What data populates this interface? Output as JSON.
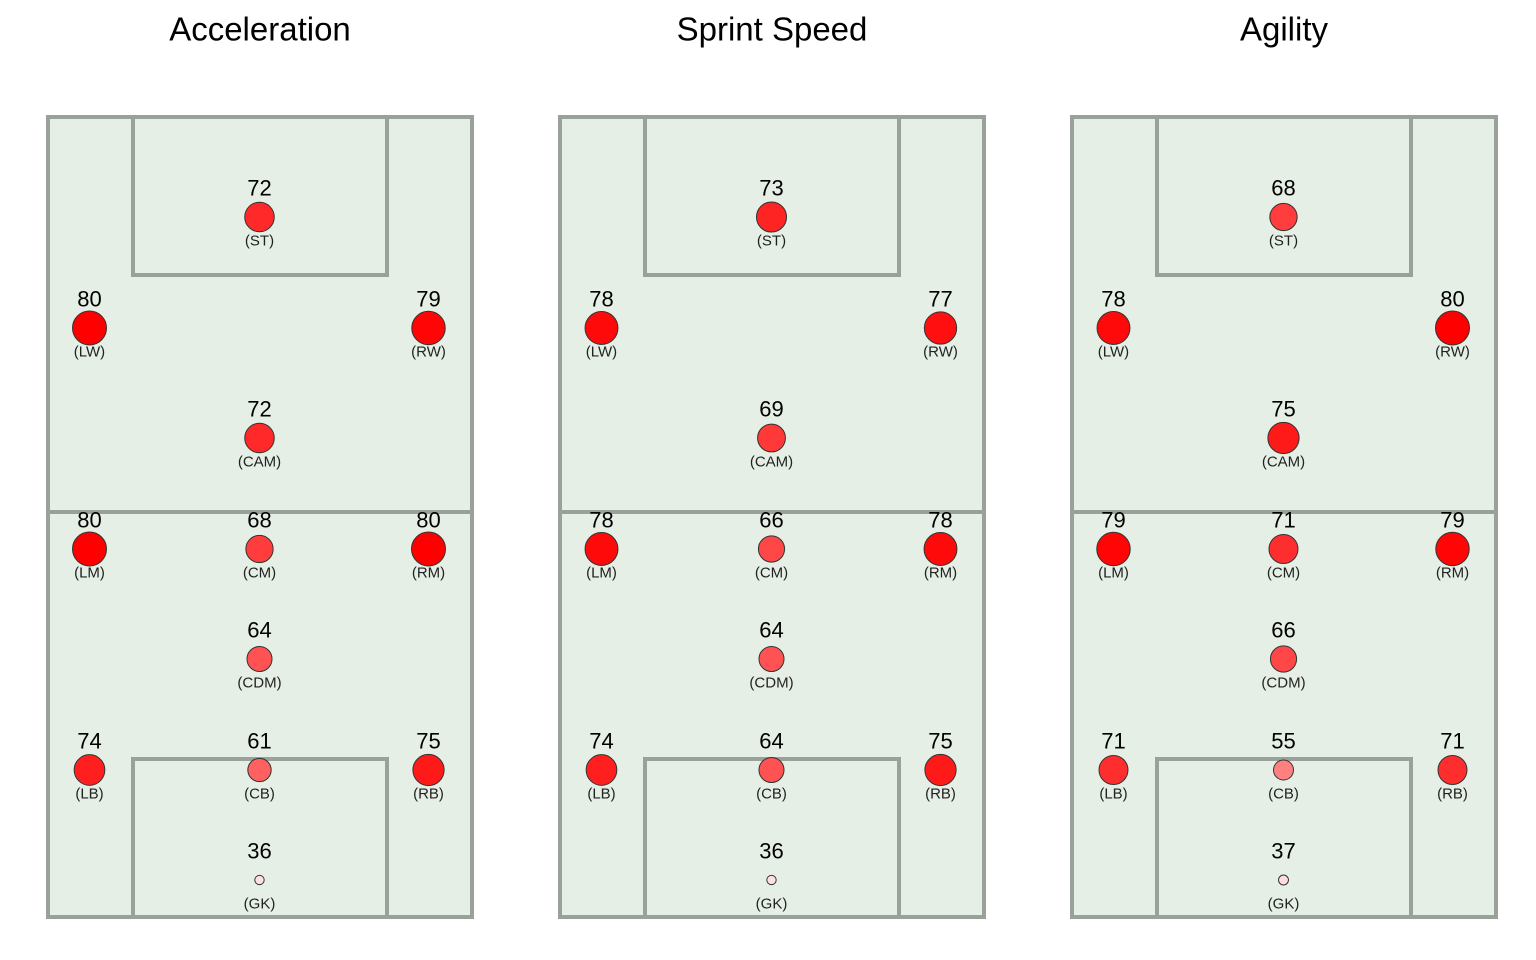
{
  "chart_data": {
    "type": "scatter",
    "color_scale": {
      "low": "#ffffff",
      "high": "#ff0000",
      "domain": [
        30,
        80
      ]
    },
    "positions": [
      {
        "pos": "ST",
        "label": "(ST)",
        "col": 1,
        "row": 0
      },
      {
        "pos": "LW",
        "label": "(LW)",
        "col": 0,
        "row": 1
      },
      {
        "pos": "RW",
        "label": "(RW)",
        "col": 2,
        "row": 1
      },
      {
        "pos": "CAM",
        "label": "(CAM)",
        "col": 1,
        "row": 2
      },
      {
        "pos": "LM",
        "label": "(LM)",
        "col": 0,
        "row": 3
      },
      {
        "pos": "CM",
        "label": "(CM)",
        "col": 1,
        "row": 3
      },
      {
        "pos": "RM",
        "label": "(RM)",
        "col": 2,
        "row": 3
      },
      {
        "pos": "CDM",
        "label": "(CDM)",
        "col": 1,
        "row": 4
      },
      {
        "pos": "LB",
        "label": "(LB)",
        "col": 0,
        "row": 5
      },
      {
        "pos": "CB",
        "label": "(CB)",
        "col": 1,
        "row": 5
      },
      {
        "pos": "RB",
        "label": "(RB)",
        "col": 2,
        "row": 5
      },
      {
        "pos": "GK",
        "label": "(GK)",
        "col": 1,
        "row": 6
      }
    ],
    "panels": [
      {
        "title": "Acceleration",
        "values": {
          "ST": 72,
          "LW": 80,
          "RW": 79,
          "CAM": 72,
          "LM": 80,
          "CM": 68,
          "RM": 80,
          "CDM": 64,
          "LB": 74,
          "CB": 61,
          "RB": 75,
          "GK": 36
        }
      },
      {
        "title": "Sprint Speed",
        "values": {
          "ST": 73,
          "LW": 78,
          "RW": 77,
          "CAM": 69,
          "LM": 78,
          "CM": 66,
          "RM": 78,
          "CDM": 64,
          "LB": 74,
          "CB": 64,
          "RB": 75,
          "GK": 36
        }
      },
      {
        "title": "Agility",
        "values": {
          "ST": 68,
          "LW": 78,
          "RW": 80,
          "CAM": 75,
          "LM": 79,
          "CM": 71,
          "RM": 79,
          "CDM": 66,
          "LB": 71,
          "CB": 55,
          "RB": 71,
          "GK": 37
        }
      }
    ]
  }
}
